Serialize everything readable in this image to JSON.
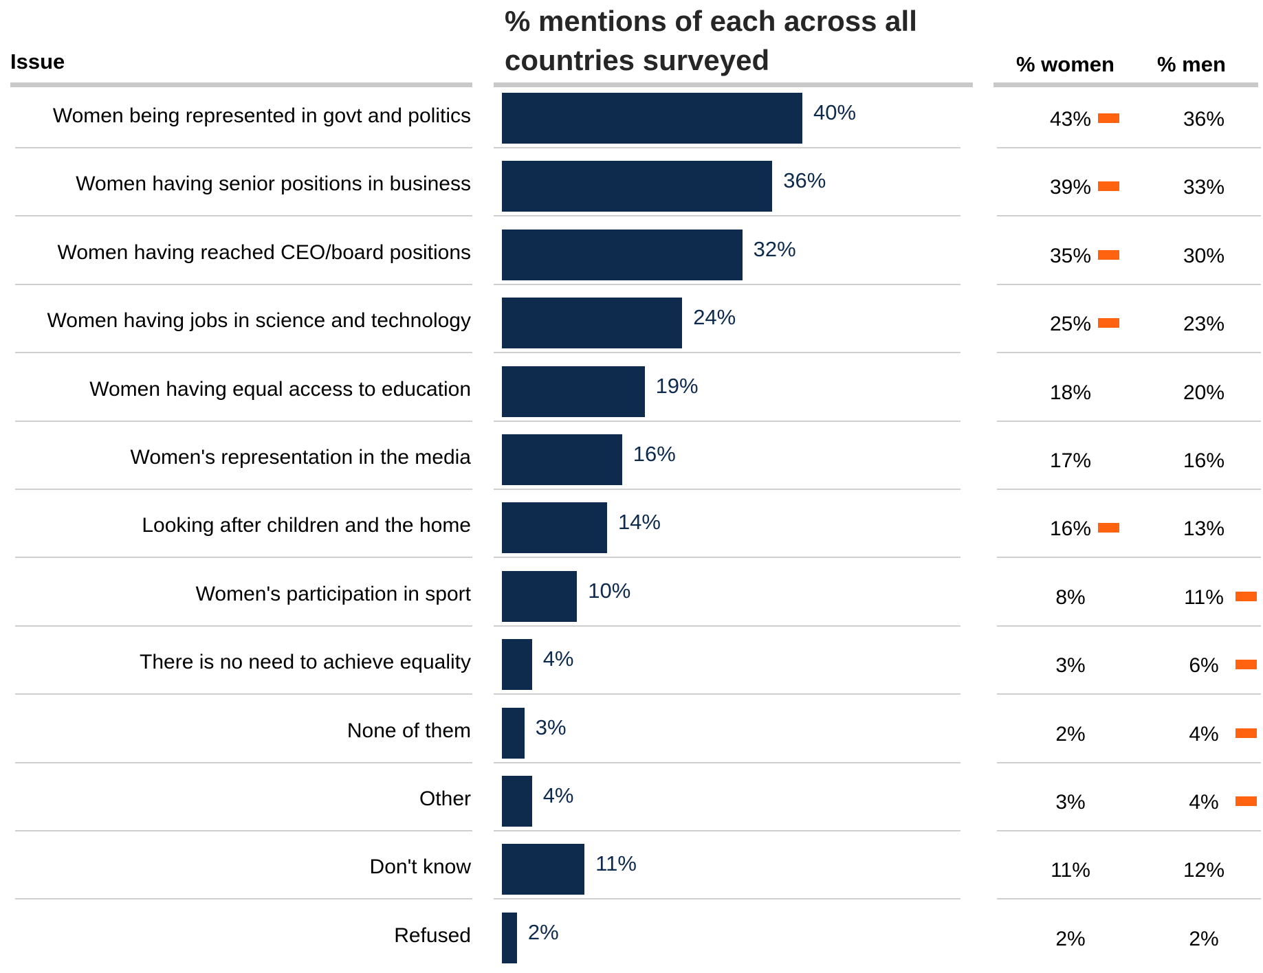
{
  "header": {
    "issue_label": "Issue",
    "chart_title": "% mentions of each across all countries surveyed",
    "women_label": "% women",
    "men_label": "% men"
  },
  "colors": {
    "bar": "#0e2a4d",
    "marker": "#ff6310",
    "rule": "#c9c9c9"
  },
  "chart_data": {
    "type": "bar",
    "orientation": "horizontal",
    "title": "% mentions of each across all countries surveyed",
    "xlim": [
      0,
      40
    ],
    "categories": [
      "Women being represented in govt and politics",
      "Women having senior positions in business",
      "Women having reached CEO/board positions",
      "Women having jobs in science and technology",
      "Women having equal access to education",
      "Women's representation in the media",
      "Looking after children and the home",
      "Women's participation in sport",
      "There is no need to achieve equality",
      "None of them",
      "Other",
      "Don't know",
      "Refused"
    ],
    "values": [
      40,
      36,
      32,
      24,
      19,
      16,
      14,
      10,
      4,
      3,
      4,
      11,
      2
    ],
    "value_labels": [
      "40%",
      "36%",
      "32%",
      "24%",
      "19%",
      "16%",
      "14%",
      "10%",
      "4%",
      "3%",
      "4%",
      "11%",
      "2%"
    ],
    "women": [
      "43%",
      "39%",
      "35%",
      "25%",
      "18%",
      "17%",
      "16%",
      "8%",
      "3%",
      "2%",
      "3%",
      "11%",
      "2%"
    ],
    "men": [
      "36%",
      "33%",
      "30%",
      "23%",
      "20%",
      "16%",
      "13%",
      "11%",
      "6%",
      "4%",
      "4%",
      "12%",
      "2%"
    ],
    "higher_marker": [
      "women",
      "women",
      "women",
      "women",
      "",
      "",
      "women",
      "men",
      "men",
      "men",
      "men",
      "",
      ""
    ]
  }
}
